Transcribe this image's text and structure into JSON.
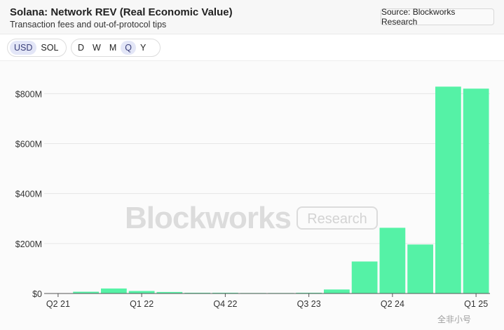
{
  "header": {
    "title": "Solana: Network REV (Real Economic Value)",
    "subtitle": "Transaction fees and out-of-protocol tips",
    "source_label": "Source: Blockworks Research"
  },
  "currency_toggle": {
    "options": [
      "USD",
      "SOL"
    ],
    "selected": "USD"
  },
  "period_toggle": {
    "options": [
      "D",
      "W",
      "M",
      "Q",
      "Y"
    ],
    "selected": "Q"
  },
  "watermark": {
    "brand": "Blockworks",
    "sub": "Research"
  },
  "corner_mark": "全非小号",
  "colors": {
    "bar": "#55f2a6",
    "grid": "#e6e6e6",
    "axis": "#555555"
  },
  "chart_data": {
    "type": "bar",
    "title": "Solana: Network REV (Real Economic Value)",
    "subtitle": "Transaction fees and out-of-protocol tips",
    "categories": [
      "Q2 21",
      "Q3 21",
      "Q4 21",
      "Q1 22",
      "Q2 22",
      "Q3 22",
      "Q4 22",
      "Q1 23",
      "Q2 23",
      "Q3 23",
      "Q4 23",
      "Q1 24",
      "Q2 24",
      "Q3 24",
      "Q4 24",
      "Q1 25"
    ],
    "values": [
      0,
      7,
      20,
      10,
      6,
      3,
      3,
      2,
      2,
      3,
      16,
      128,
      263,
      196,
      828,
      820
    ],
    "unit": "USD millions",
    "x_tick_labels": [
      "Q2 21",
      "Q1 22",
      "Q4 22",
      "Q3 23",
      "Q2 24",
      "Q1 25"
    ],
    "y_ticks": [
      0,
      200,
      400,
      600,
      800
    ],
    "y_tick_labels": [
      "$0",
      "$200M",
      "$400M",
      "$600M",
      "$800M"
    ],
    "ylim": [
      0,
      860
    ],
    "grid": true
  }
}
